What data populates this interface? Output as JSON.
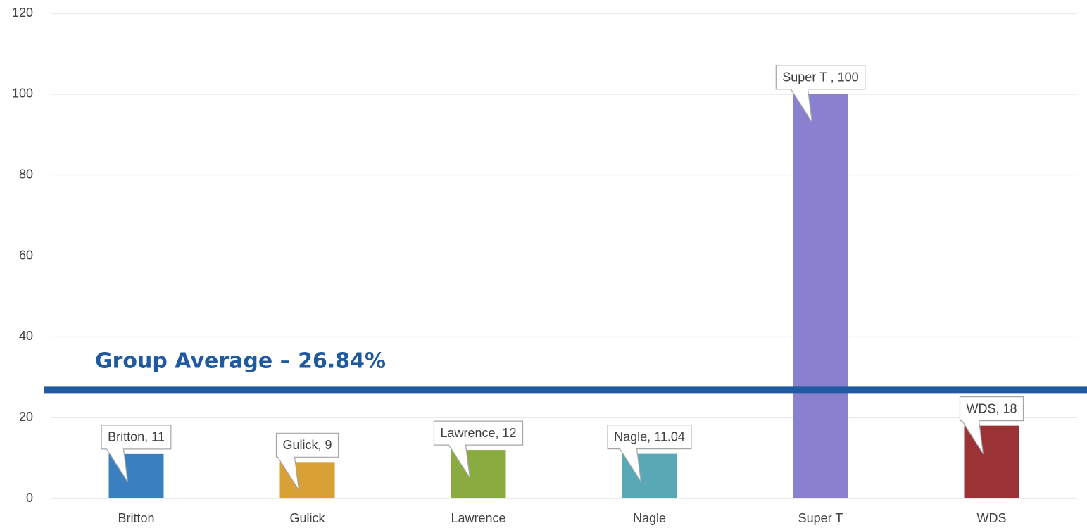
{
  "chart_data": {
    "type": "bar",
    "categories": [
      "Britton",
      "Gulick",
      "Lawrence",
      "Nagle",
      "Super T",
      "WDS"
    ],
    "values": [
      11,
      9,
      12,
      11.04,
      100,
      18
    ],
    "value_labels": [
      "Britton, 11",
      "Gulick, 9",
      "Lawrence, 12",
      "Nagle, 11.04",
      "Super T , 100",
      "WDS, 18"
    ],
    "colors": [
      "#3a7fbf",
      "#d9a036",
      "#8aab3f",
      "#59a8b5",
      "#8a80d0",
      "#9b3236"
    ],
    "ylim": [
      0,
      120
    ],
    "yticks": [
      0,
      20,
      40,
      60,
      80,
      100,
      120
    ],
    "grid": true,
    "reference_line": {
      "value": 26.84,
      "label": "Group Average – 26.84%",
      "color": "#1f5aa0"
    }
  }
}
